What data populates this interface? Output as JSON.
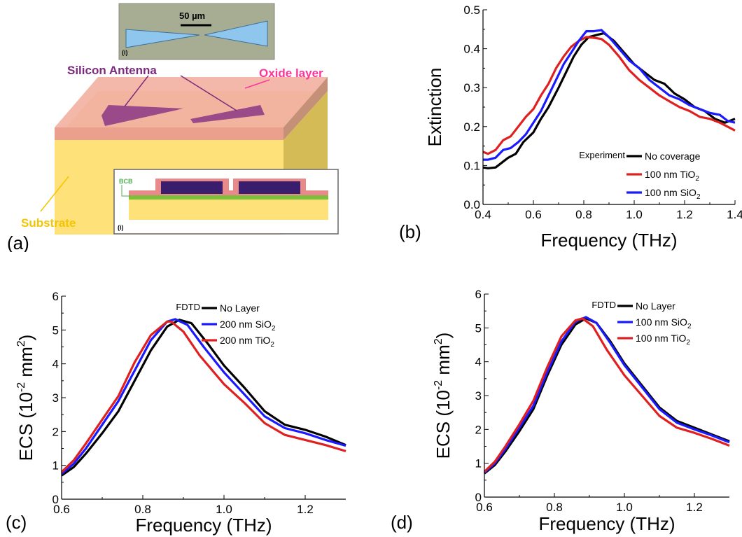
{
  "panel_a": {
    "label": "(a)",
    "scale_bar": "50 µm",
    "micro_tag": "(i)",
    "inset_tag": "(i)",
    "antenna_label": "Silicon Antenna",
    "oxide_label": "Oxide layer",
    "substrate_label": "Substrate",
    "bcb_label": "BCB",
    "colors": {
      "antenna": "#7b2a7e",
      "oxide": "#ff3399",
      "substrate": "#f5c400",
      "bcb": "#4caf50"
    }
  },
  "chart_data": [
    {
      "id": "b",
      "panel_label": "(b)",
      "type": "line",
      "xlabel": "Frequency (THz)",
      "ylabel": "Extinction",
      "xlim": [
        0.4,
        1.4
      ],
      "ylim": [
        0.0,
        0.5
      ],
      "xticks": [
        "0.4",
        "0.6",
        "0.8",
        "1.0",
        "1.2",
        "1.4"
      ],
      "yticks": [
        "0.0",
        "0.1",
        "0.2",
        "0.3",
        "0.4",
        "0.5"
      ],
      "legend_title": "Experiment",
      "legend_position": "bottom-right",
      "series": [
        {
          "name": "No coverage",
          "sub": "",
          "color": "#000000",
          "points": [
            [
              0.4,
              0.095
            ],
            [
              0.42,
              0.093
            ],
            [
              0.45,
              0.095
            ],
            [
              0.48,
              0.11
            ],
            [
              0.5,
              0.12
            ],
            [
              0.53,
              0.13
            ],
            [
              0.56,
              0.16
            ],
            [
              0.6,
              0.185
            ],
            [
              0.63,
              0.22
            ],
            [
              0.66,
              0.25
            ],
            [
              0.7,
              0.3
            ],
            [
              0.73,
              0.34
            ],
            [
              0.76,
              0.38
            ],
            [
              0.79,
              0.41
            ],
            [
              0.82,
              0.43
            ],
            [
              0.85,
              0.435
            ],
            [
              0.88,
              0.44
            ],
            [
              0.92,
              0.42
            ],
            [
              0.96,
              0.39
            ],
            [
              1.0,
              0.36
            ],
            [
              1.04,
              0.34
            ],
            [
              1.08,
              0.32
            ],
            [
              1.12,
              0.31
            ],
            [
              1.16,
              0.285
            ],
            [
              1.2,
              0.27
            ],
            [
              1.24,
              0.25
            ],
            [
              1.28,
              0.24
            ],
            [
              1.32,
              0.22
            ],
            [
              1.36,
              0.21
            ],
            [
              1.4,
              0.22
            ]
          ]
        },
        {
          "name": "100 nm TiO",
          "sub": "2",
          "color": "#e02020",
          "points": [
            [
              0.4,
              0.135
            ],
            [
              0.42,
              0.13
            ],
            [
              0.45,
              0.14
            ],
            [
              0.48,
              0.165
            ],
            [
              0.51,
              0.175
            ],
            [
              0.54,
              0.2
            ],
            [
              0.57,
              0.225
            ],
            [
              0.6,
              0.245
            ],
            [
              0.63,
              0.28
            ],
            [
              0.66,
              0.31
            ],
            [
              0.69,
              0.35
            ],
            [
              0.72,
              0.38
            ],
            [
              0.75,
              0.405
            ],
            [
              0.78,
              0.42
            ],
            [
              0.81,
              0.43
            ],
            [
              0.84,
              0.428
            ],
            [
              0.87,
              0.425
            ],
            [
              0.9,
              0.41
            ],
            [
              0.94,
              0.38
            ],
            [
              0.98,
              0.345
            ],
            [
              1.02,
              0.32
            ],
            [
              1.06,
              0.3
            ],
            [
              1.1,
              0.28
            ],
            [
              1.14,
              0.265
            ],
            [
              1.18,
              0.25
            ],
            [
              1.22,
              0.24
            ],
            [
              1.26,
              0.225
            ],
            [
              1.3,
              0.22
            ],
            [
              1.34,
              0.21
            ],
            [
              1.37,
              0.2
            ],
            [
              1.4,
              0.19
            ]
          ]
        },
        {
          "name": "100 nm SiO",
          "sub": "2",
          "color": "#1a1aff",
          "points": [
            [
              0.4,
              0.115
            ],
            [
              0.42,
              0.115
            ],
            [
              0.45,
              0.12
            ],
            [
              0.48,
              0.14
            ],
            [
              0.51,
              0.145
            ],
            [
              0.54,
              0.16
            ],
            [
              0.57,
              0.18
            ],
            [
              0.6,
              0.21
            ],
            [
              0.63,
              0.24
            ],
            [
              0.66,
              0.28
            ],
            [
              0.69,
              0.32
            ],
            [
              0.72,
              0.36
            ],
            [
              0.75,
              0.39
            ],
            [
              0.78,
              0.42
            ],
            [
              0.81,
              0.445
            ],
            [
              0.84,
              0.445
            ],
            [
              0.87,
              0.448
            ],
            [
              0.9,
              0.43
            ],
            [
              0.94,
              0.4
            ],
            [
              0.98,
              0.37
            ],
            [
              1.02,
              0.35
            ],
            [
              1.06,
              0.32
            ],
            [
              1.1,
              0.3
            ],
            [
              1.14,
              0.28
            ],
            [
              1.18,
              0.27
            ],
            [
              1.22,
              0.255
            ],
            [
              1.26,
              0.245
            ],
            [
              1.3,
              0.235
            ],
            [
              1.34,
              0.23
            ],
            [
              1.37,
              0.215
            ],
            [
              1.4,
              0.21
            ]
          ]
        }
      ]
    },
    {
      "id": "c",
      "panel_label": "(c)",
      "type": "line",
      "xlabel": "Frequency (THz)",
      "ylabel": "ECS (10",
      "ylabel_sup": "-2",
      "ylabel_tail": " mm",
      "ylabel_sup2": "2",
      "ylabel_end": ")",
      "xlim": [
        0.6,
        1.3
      ],
      "ylim": [
        0,
        6
      ],
      "xticks": [
        "0.6",
        "0.8",
        "1.0",
        "1.2"
      ],
      "yticks": [
        "0",
        "1",
        "2",
        "3",
        "4",
        "5",
        "6"
      ],
      "legend_title": "FDTD",
      "legend_position": "top-right",
      "series": [
        {
          "name": "No Layer",
          "sub": "",
          "color": "#000000",
          "points": [
            [
              0.6,
              0.7
            ],
            [
              0.63,
              0.95
            ],
            [
              0.66,
              1.35
            ],
            [
              0.7,
              1.95
            ],
            [
              0.74,
              2.6
            ],
            [
              0.78,
              3.5
            ],
            [
              0.82,
              4.4
            ],
            [
              0.86,
              5.1
            ],
            [
              0.89,
              5.3
            ],
            [
              0.92,
              5.2
            ],
            [
              0.96,
              4.6
            ],
            [
              1.0,
              3.95
            ],
            [
              1.05,
              3.3
            ],
            [
              1.1,
              2.6
            ],
            [
              1.15,
              2.2
            ],
            [
              1.2,
              2.05
            ],
            [
              1.25,
              1.85
            ],
            [
              1.3,
              1.6
            ]
          ]
        },
        {
          "name": "200 nm SiO",
          "sub": "2",
          "color": "#1a1aff",
          "points": [
            [
              0.6,
              0.75
            ],
            [
              0.63,
              1.05
            ],
            [
              0.66,
              1.5
            ],
            [
              0.7,
              2.2
            ],
            [
              0.74,
              2.9
            ],
            [
              0.78,
              3.8
            ],
            [
              0.82,
              4.7
            ],
            [
              0.86,
              5.25
            ],
            [
              0.88,
              5.32
            ],
            [
              0.91,
              5.15
            ],
            [
              0.95,
              4.5
            ],
            [
              1.0,
              3.75
            ],
            [
              1.05,
              3.1
            ],
            [
              1.1,
              2.45
            ],
            [
              1.15,
              2.1
            ],
            [
              1.2,
              1.95
            ],
            [
              1.25,
              1.75
            ],
            [
              1.3,
              1.58
            ]
          ]
        },
        {
          "name": "200 nm TiO",
          "sub": "2",
          "color": "#e02020",
          "points": [
            [
              0.6,
              0.8
            ],
            [
              0.63,
              1.15
            ],
            [
              0.66,
              1.65
            ],
            [
              0.7,
              2.35
            ],
            [
              0.74,
              3.05
            ],
            [
              0.78,
              4.05
            ],
            [
              0.82,
              4.85
            ],
            [
              0.86,
              5.25
            ],
            [
              0.87,
              5.25
            ],
            [
              0.9,
              4.95
            ],
            [
              0.94,
              4.25
            ],
            [
              1.0,
              3.4
            ],
            [
              1.05,
              2.85
            ],
            [
              1.1,
              2.25
            ],
            [
              1.15,
              1.9
            ],
            [
              1.2,
              1.75
            ],
            [
              1.25,
              1.6
            ],
            [
              1.3,
              1.42
            ]
          ]
        }
      ]
    },
    {
      "id": "d",
      "panel_label": "(d)",
      "type": "line",
      "xlabel": "Frequency (THz)",
      "ylabel": "ECS (10",
      "ylabel_sup": "-2",
      "ylabel_tail": " mm",
      "ylabel_sup2": "2",
      "ylabel_end": ")",
      "xlim": [
        0.6,
        1.3
      ],
      "ylim": [
        0,
        6
      ],
      "xticks": [
        "0.6",
        "0.8",
        "1.0",
        "1.2"
      ],
      "yticks": [
        "0",
        "1",
        "2",
        "3",
        "4",
        "5",
        "6"
      ],
      "legend_title": "FDTD",
      "legend_position": "top-right",
      "series": [
        {
          "name": "No Layer",
          "sub": "",
          "color": "#000000",
          "points": [
            [
              0.6,
              0.7
            ],
            [
              0.63,
              0.95
            ],
            [
              0.66,
              1.35
            ],
            [
              0.7,
              1.95
            ],
            [
              0.74,
              2.6
            ],
            [
              0.78,
              3.6
            ],
            [
              0.82,
              4.5
            ],
            [
              0.86,
              5.1
            ],
            [
              0.89,
              5.28
            ],
            [
              0.92,
              5.15
            ],
            [
              0.96,
              4.6
            ],
            [
              1.0,
              3.95
            ],
            [
              1.05,
              3.3
            ],
            [
              1.1,
              2.65
            ],
            [
              1.15,
              2.25
            ],
            [
              1.2,
              2.05
            ],
            [
              1.25,
              1.85
            ],
            [
              1.3,
              1.65
            ]
          ]
        },
        {
          "name": "100 nm SiO",
          "sub": "2",
          "color": "#1a1aff",
          "points": [
            [
              0.6,
              0.72
            ],
            [
              0.63,
              1.0
            ],
            [
              0.66,
              1.42
            ],
            [
              0.7,
              2.05
            ],
            [
              0.74,
              2.7
            ],
            [
              0.78,
              3.7
            ],
            [
              0.82,
              4.6
            ],
            [
              0.86,
              5.18
            ],
            [
              0.89,
              5.32
            ],
            [
              0.92,
              5.15
            ],
            [
              0.96,
              4.55
            ],
            [
              1.0,
              3.9
            ],
            [
              1.05,
              3.25
            ],
            [
              1.1,
              2.6
            ],
            [
              1.15,
              2.2
            ],
            [
              1.2,
              2.0
            ],
            [
              1.25,
              1.82
            ],
            [
              1.3,
              1.62
            ]
          ]
        },
        {
          "name": "100 nm TiO",
          "sub": "2",
          "color": "#e02020",
          "points": [
            [
              0.6,
              0.75
            ],
            [
              0.63,
              1.05
            ],
            [
              0.66,
              1.5
            ],
            [
              0.7,
              2.15
            ],
            [
              0.74,
              2.85
            ],
            [
              0.78,
              3.85
            ],
            [
              0.82,
              4.75
            ],
            [
              0.86,
              5.22
            ],
            [
              0.88,
              5.28
            ],
            [
              0.91,
              5.05
            ],
            [
              0.95,
              4.35
            ],
            [
              1.0,
              3.6
            ],
            [
              1.05,
              3.0
            ],
            [
              1.1,
              2.4
            ],
            [
              1.15,
              2.05
            ],
            [
              1.2,
              1.9
            ],
            [
              1.25,
              1.72
            ],
            [
              1.3,
              1.52
            ]
          ]
        }
      ]
    }
  ]
}
